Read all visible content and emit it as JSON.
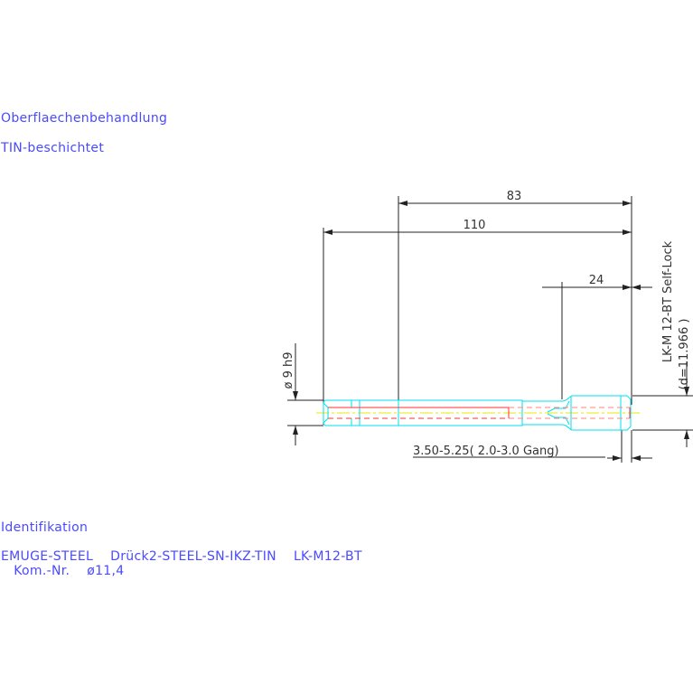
{
  "notes": {
    "surface_heading": "Oberflaechenbehandlung",
    "surface_value": "TIN-beschichtet",
    "ident_heading": "Identifikation",
    "ident_line1": "EMUGE-STEEL    Drück2-STEEL-SN-IKZ-TIN    LK-M12-BT",
    "ident_line2": "   Kom.-Nr.    ø11,4"
  },
  "dimensions": {
    "length_83": "83",
    "length_110": "110",
    "length_24": "24",
    "shank_diameter": "ø 9 h9",
    "thread_label": "LK-M 12-BT Self-Lock",
    "thread_d": "(d=11.966 )",
    "chamfer_label": "3.50-5.25( 2.0-3.0  Gang)"
  },
  "colors": {
    "text": "#4a4aff",
    "outline": "#00e0f0",
    "core": "#ff3030",
    "centerline": "#e8e800",
    "dimension": "#222222"
  }
}
